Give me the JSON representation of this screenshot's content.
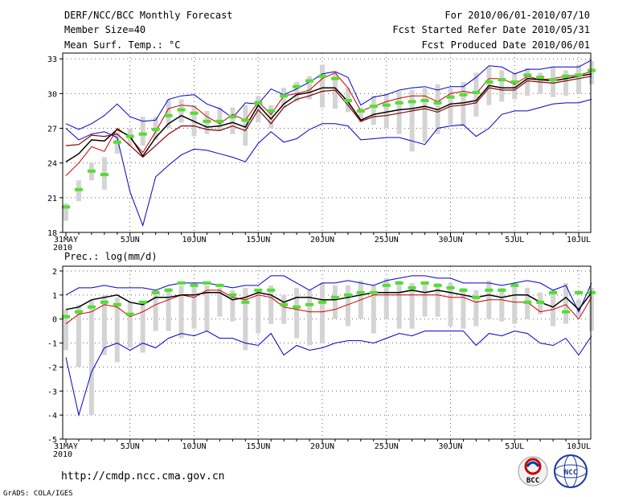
{
  "header": {
    "title": "DERF/NCC/BCC Monthly Forecast",
    "member_size": "Member Size=40",
    "variable_top": "Mean Surf. Temp.: °C",
    "for_period": "For 2010/06/01-2010/07/10",
    "fcst_started": "Fcst Started Refer Date 2010/05/31",
    "fcst_produced": "Fcst Produced Date 2010/06/01"
  },
  "footer": {
    "url": "http://cmdp.ncc.cma.gov.cn",
    "grads": "GrADS: COLA/IGES",
    "logo_bcc": "BCC",
    "logo_ncc": "NCC"
  },
  "colors": {
    "upper": "#0000cc",
    "lower": "#0000cc",
    "mean": "#000000",
    "obs": "#cc0000",
    "bar": "#d4d4d4",
    "marker": "#55dd33"
  },
  "chart_data": [
    {
      "type": "line",
      "title": "Mean Surf. Temp.: °C",
      "x_tick_labels": [
        "31MAY",
        "5JUN",
        "10JUN",
        "15JUN",
        "20JUN",
        "25JUN",
        "30JUN",
        "5JUL",
        "10JUL"
      ],
      "x_tick_days": [
        0,
        5,
        10,
        15,
        20,
        25,
        30,
        35,
        40
      ],
      "x_year": "2010",
      "ylim": [
        18,
        33.5
      ],
      "y_ticks": [
        18,
        21,
        24,
        27,
        30,
        33
      ],
      "series": [
        {
          "name": "upper",
          "values": [
            27.4,
            26.9,
            27.4,
            28.1,
            29.1,
            28.0,
            27.6,
            27.7,
            29.5,
            29.8,
            29.9,
            29.1,
            28.7,
            27.9,
            29.2,
            29.1,
            30.4,
            29.9,
            30.4,
            31.0,
            31.7,
            31.9,
            31.4,
            29.0,
            29.7,
            29.9,
            30.3,
            30.5,
            30.6,
            30.3,
            30.6,
            30.6,
            31.4,
            32.4,
            32.3,
            31.7,
            32.1,
            32.1,
            32.3,
            32.3,
            32.3,
            32.9
          ]
        },
        {
          "name": "obs",
          "values": [
            22.9,
            24.0,
            25.4,
            25.0,
            27.0,
            26.2,
            24.9,
            26.7,
            28.7,
            29.0,
            28.9,
            28.0,
            27.4,
            28.2,
            27.7,
            29.3,
            28.2,
            29.8,
            30.0,
            30.3,
            31.3,
            31.8,
            30.5,
            28.5,
            28.9,
            29.3,
            29.6,
            29.8,
            29.8,
            29.3,
            30.0,
            30.2,
            30.0,
            31.3,
            31.3,
            30.8,
            31.5,
            31.2,
            31.3,
            31.5,
            31.6,
            31.9
          ]
        },
        {
          "name": "mean",
          "values": [
            24.1,
            24.8,
            26.0,
            25.9,
            26.9,
            26.3,
            24.6,
            26.2,
            27.4,
            28.1,
            27.6,
            27.1,
            27.2,
            27.5,
            27.1,
            29.0,
            27.8,
            29.1,
            29.9,
            30.1,
            30.5,
            30.5,
            29.3,
            27.7,
            28.2,
            28.4,
            28.6,
            28.7,
            28.9,
            28.6,
            29.1,
            29.2,
            29.4,
            30.7,
            30.5,
            30.5,
            31.3,
            31.2,
            31.1,
            31.3,
            31.5,
            31.7
          ]
        },
        {
          "name": "lower",
          "values": [
            25.5,
            25.6,
            26.4,
            26.3,
            26.5,
            25.5,
            24.5,
            25.5,
            26.5,
            27.2,
            27.2,
            26.9,
            26.8,
            27.2,
            26.8,
            28.6,
            27.4,
            28.8,
            29.5,
            29.8,
            30.2,
            30.3,
            29.0,
            27.6,
            28.0,
            28.1,
            28.3,
            28.5,
            28.7,
            28.4,
            28.9,
            29.0,
            29.2,
            30.5,
            30.3,
            30.3,
            31.1,
            31.0,
            30.9,
            31.1,
            31.3,
            31.5
          ]
        },
        {
          "name": "lowest",
          "values": [
            27.0,
            26.0,
            26.5,
            26.7,
            26.2,
            21.5,
            18.6,
            22.8,
            23.8,
            24.7,
            25.2,
            25.1,
            24.8,
            24.5,
            24.1,
            25.7,
            26.7,
            25.8,
            26.1,
            26.9,
            27.4,
            27.4,
            27.2,
            26.0,
            26.1,
            26.2,
            26.2,
            25.9,
            25.6,
            27.0,
            27.2,
            27.3,
            26.3,
            27.0,
            28.2,
            28.5,
            28.5,
            28.8,
            29.1,
            29.2,
            29.2,
            29.5
          ]
        }
      ],
      "obs_markers": [
        20.2,
        21.7,
        23.3,
        23.0,
        25.8,
        26.3,
        26.5,
        26.9,
        28.1,
        28.6,
        28.3,
        27.6,
        27.6,
        28.0,
        27.7,
        29.2,
        28.5,
        29.8,
        30.6,
        31.1,
        31.5,
        31.3,
        29.4,
        28.5,
        28.9,
        29.0,
        29.2,
        29.3,
        29.4,
        29.2,
        29.7,
        29.9,
        30.1,
        31.0,
        31.2,
        31.0,
        31.6,
        31.4,
        31.2,
        31.5,
        31.6,
        32.0
      ],
      "bars": [
        [
          19.0,
          20.5
        ],
        [
          20.7,
          22.5
        ],
        [
          22.5,
          24.0
        ],
        [
          21.7,
          24.5
        ],
        [
          24.8,
          26.7
        ],
        [
          25.5,
          27.0
        ],
        [
          25.5,
          28.0
        ],
        [
          26.0,
          28.0
        ],
        [
          27.0,
          29.5
        ],
        [
          27.5,
          29.5
        ],
        [
          26.3,
          29.0
        ],
        [
          26.5,
          28.5
        ],
        [
          26.8,
          28.8
        ],
        [
          26.5,
          28.8
        ],
        [
          25.5,
          29.0
        ],
        [
          27.5,
          29.8
        ],
        [
          27.0,
          29.0
        ],
        [
          28.8,
          30.5
        ],
        [
          29.3,
          31.0
        ],
        [
          29.5,
          31.5
        ],
        [
          28.8,
          32.5
        ],
        [
          28.7,
          31.8
        ],
        [
          28.4,
          30.5
        ],
        [
          27.5,
          28.8
        ],
        [
          27.3,
          29.8
        ],
        [
          27.0,
          30.0
        ],
        [
          26.5,
          30.2
        ],
        [
          25.0,
          30.3
        ],
        [
          25.8,
          30.5
        ],
        [
          26.5,
          30.8
        ],
        [
          27.3,
          30.5
        ],
        [
          27.2,
          31.0
        ],
        [
          28.0,
          31.8
        ],
        [
          29.0,
          32.3
        ],
        [
          29.3,
          32.0
        ],
        [
          29.5,
          31.8
        ],
        [
          29.8,
          32.2
        ],
        [
          30.0,
          31.8
        ],
        [
          29.7,
          32.3
        ],
        [
          29.8,
          32.0
        ],
        [
          30.0,
          32.5
        ],
        [
          30.8,
          32.8
        ]
      ]
    },
    {
      "type": "line",
      "title": "Prec.: log(mm/d)",
      "x_tick_labels": [
        "31MAY",
        "5JUN",
        "10JUN",
        "15JUN",
        "20JUN",
        "25JUN",
        "30JUN",
        "5JUL",
        "10JUL"
      ],
      "x_tick_days": [
        0,
        5,
        10,
        15,
        20,
        25,
        30,
        35,
        40
      ],
      "x_year": "2010",
      "ylim": [
        -5,
        2.2
      ],
      "y_ticks": [
        -5,
        -4,
        -3,
        -2,
        -1,
        0,
        1,
        2
      ],
      "series": [
        {
          "name": "upper",
          "values": [
            1.0,
            1.3,
            1.3,
            1.4,
            1.3,
            1.3,
            1.3,
            1.2,
            1.4,
            1.5,
            1.5,
            1.5,
            1.4,
            1.3,
            1.4,
            1.4,
            1.8,
            1.8,
            1.5,
            1.2,
            1.5,
            1.5,
            1.6,
            1.5,
            1.4,
            1.6,
            1.7,
            1.8,
            1.8,
            1.7,
            1.7,
            1.5,
            1.5,
            1.5,
            1.4,
            1.5,
            1.6,
            1.5,
            1.2,
            1.4,
            0.3,
            1.5
          ]
        },
        {
          "name": "obs",
          "values": [
            -0.2,
            0.2,
            0.3,
            0.6,
            0.5,
            0.1,
            0.3,
            0.6,
            0.8,
            1.0,
            0.9,
            1.2,
            1.2,
            0.9,
            0.8,
            1.0,
            0.9,
            0.5,
            0.4,
            0.3,
            0.3,
            0.4,
            0.6,
            0.8,
            1.0,
            1.0,
            1.0,
            1.0,
            1.0,
            1.0,
            0.9,
            0.9,
            0.7,
            0.8,
            0.8,
            0.7,
            0.7,
            0.3,
            0.4,
            0.6,
            0.0,
            0.9
          ]
        },
        {
          "name": "mean",
          "values": [
            0.4,
            0.5,
            0.8,
            0.9,
            1.0,
            0.7,
            0.6,
            0.9,
            0.9,
            1.0,
            1.0,
            1.1,
            1.1,
            0.8,
            0.9,
            1.1,
            1.0,
            0.7,
            0.9,
            0.9,
            0.8,
            0.8,
            0.9,
            1.0,
            1.1,
            1.1,
            1.1,
            1.2,
            1.1,
            1.2,
            1.1,
            1.0,
            0.9,
            1.0,
            0.9,
            1.0,
            1.0,
            0.7,
            0.5,
            0.9,
            0.4,
            1.1
          ]
        },
        {
          "name": "lower",
          "values": [
            -1.6,
            -4.0,
            -2.2,
            -1.2,
            -1.0,
            -1.3,
            -1.0,
            -1.2,
            -0.8,
            -0.6,
            -0.7,
            -0.5,
            -0.8,
            -0.8,
            -1.0,
            -1.1,
            -0.6,
            -1.5,
            -1.1,
            -1.3,
            -1.2,
            -1.0,
            -0.9,
            -0.9,
            -1.0,
            -0.8,
            -0.6,
            -0.7,
            -0.5,
            -0.5,
            -0.5,
            -0.5,
            -1.1,
            -0.6,
            -0.7,
            -0.5,
            -0.6,
            -1.0,
            -1.1,
            -0.8,
            -1.5,
            -0.7
          ]
        }
      ],
      "obs_markers": [
        0.1,
        0.3,
        0.5,
        0.7,
        0.6,
        0.2,
        0.7,
        1.1,
        1.2,
        1.5,
        1.4,
        1.5,
        1.4,
        1.0,
        0.7,
        1.2,
        1.2,
        0.6,
        0.5,
        0.6,
        0.7,
        0.9,
        1.0,
        1.1,
        1.1,
        1.4,
        1.5,
        1.3,
        1.5,
        1.4,
        1.3,
        1.2,
        0.9,
        1.2,
        1.2,
        1.4,
        0.7,
        0.7,
        1.1,
        0.3,
        1.1,
        1.1
      ],
      "bars": [
        [
          -1.3,
          0.4
        ],
        [
          -2.0,
          0.6
        ],
        [
          -4.0,
          0.8
        ],
        [
          -1.5,
          1.0
        ],
        [
          -1.8,
          0.9
        ],
        [
          -1.2,
          0.7
        ],
        [
          -1.4,
          0.7
        ],
        [
          -0.5,
          1.2
        ],
        [
          -0.5,
          1.3
        ],
        [
          -0.8,
          1.4
        ],
        [
          -0.4,
          1.5
        ],
        [
          -0.5,
          1.4
        ],
        [
          0.1,
          1.3
        ],
        [
          -0.1,
          1.2
        ],
        [
          -1.3,
          1.3
        ],
        [
          -0.6,
          1.2
        ],
        [
          -0.2,
          1.4
        ],
        [
          -0.2,
          1.0
        ],
        [
          -0.8,
          1.3
        ],
        [
          -1.1,
          1.2
        ],
        [
          -1.0,
          1.5
        ],
        [
          0.0,
          1.4
        ],
        [
          -0.3,
          1.4
        ],
        [
          0.0,
          1.6
        ],
        [
          -0.6,
          1.4
        ],
        [
          0.0,
          1.7
        ],
        [
          -0.4,
          1.6
        ],
        [
          -0.4,
          1.5
        ],
        [
          0.1,
          1.5
        ],
        [
          0.1,
          1.5
        ],
        [
          -0.3,
          1.5
        ],
        [
          -0.4,
          1.3
        ],
        [
          -0.3,
          1.2
        ],
        [
          0.0,
          1.6
        ],
        [
          -0.1,
          1.3
        ],
        [
          -0.2,
          1.5
        ],
        [
          0.0,
          1.3
        ],
        [
          0.2,
          1.1
        ],
        [
          -0.3,
          1.2
        ],
        [
          -0.2,
          1.5
        ],
        [
          0.1,
          0.8
        ],
        [
          -0.5,
          1.3
        ]
      ]
    }
  ]
}
